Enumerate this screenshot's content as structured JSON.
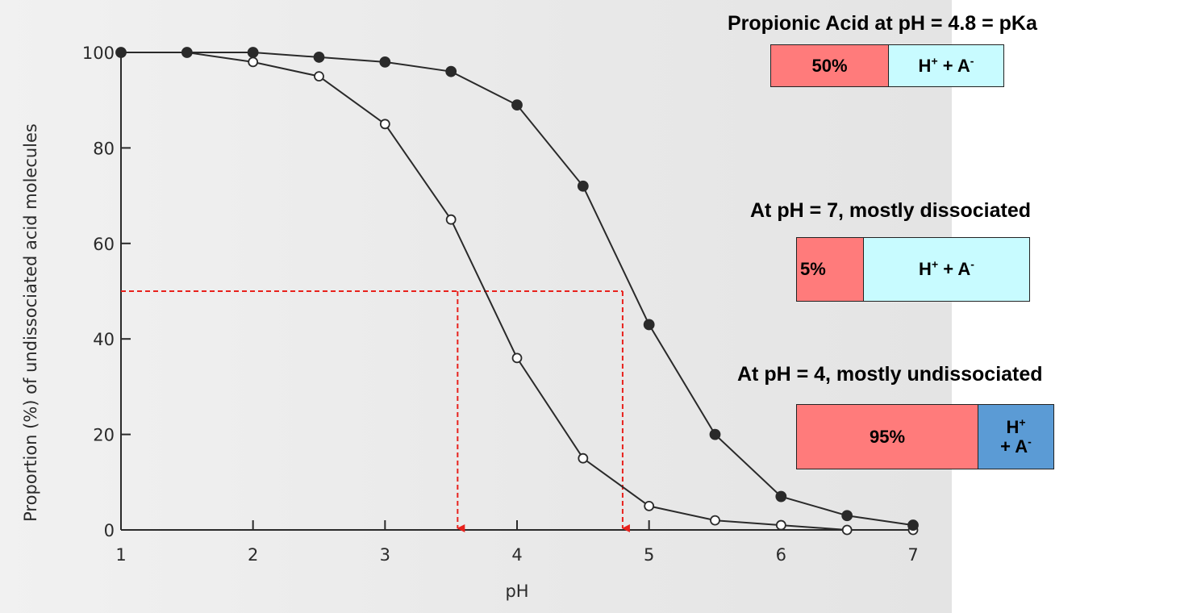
{
  "chart_data": {
    "type": "line",
    "xlabel": "pH",
    "ylabel": "Proportion (%) of undissociated acid molecules",
    "xlim": [
      1,
      7
    ],
    "ylim": [
      0,
      100
    ],
    "xticks": [
      "1",
      "2",
      "3",
      "4",
      "5",
      "6",
      "7"
    ],
    "yticks": [
      "0",
      "20",
      "40",
      "60",
      "80",
      "100"
    ],
    "series": [
      {
        "marker": "open-circle",
        "x": [
          1,
          1.5,
          2,
          2.5,
          3,
          3.5,
          4,
          4.5,
          5,
          5.5,
          6,
          6.5,
          7
        ],
        "y": [
          100,
          100,
          98,
          95,
          85,
          65,
          36,
          15,
          5,
          2,
          1,
          0,
          0
        ]
      },
      {
        "marker": "filled-circle",
        "x": [
          1,
          1.5,
          2,
          2.5,
          3,
          3.5,
          4,
          4.5,
          5,
          5.5,
          6,
          6.5,
          7
        ],
        "y": [
          100,
          100,
          100,
          99,
          98,
          96,
          89,
          72,
          43,
          20,
          7,
          3,
          1
        ]
      }
    ],
    "annotations": {
      "level_y": 50,
      "arrow_x": [
        3.55,
        4.8
      ],
      "color": "#e8211c"
    }
  },
  "panels": [
    {
      "title": "Propionic Acid at pH = 4.8 = pKa",
      "undissociated_label": "50%",
      "dissociated_label": "H+ + A-",
      "undissociated_fraction": 0.5,
      "dissociated_color": "#c8fbff"
    },
    {
      "title": "At pH = 7, mostly dissociated",
      "undissociated_label": "5%",
      "dissociated_label": "H+ + A-",
      "undissociated_fraction": 0.05,
      "dissociated_color": "#c8fbff"
    },
    {
      "title": "At pH = 4, mostly undissociated",
      "undissociated_label": "95%",
      "dissociated_label": "H+ + A-",
      "undissociated_fraction": 0.95,
      "dissociated_color": "#5b9bd5"
    }
  ],
  "colors": {
    "undissociated": "#ff7b7b",
    "line": "#2a2a2a"
  }
}
